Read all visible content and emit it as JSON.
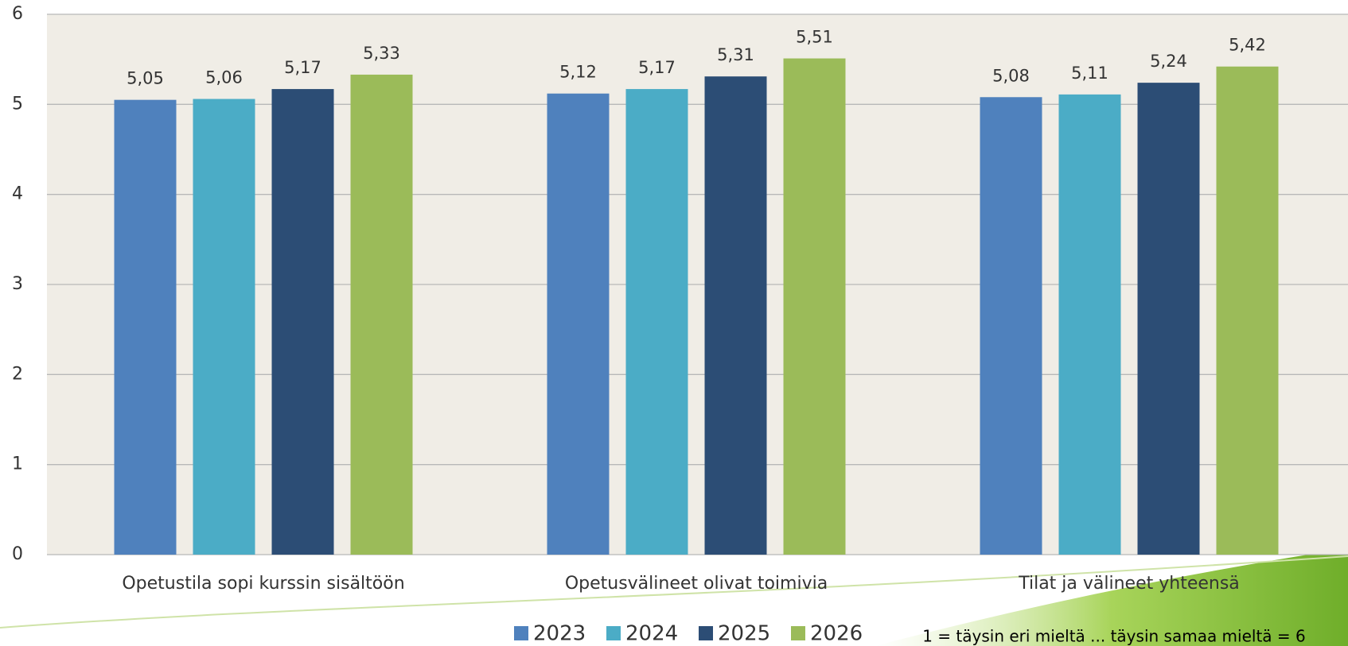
{
  "chart_data": {
    "type": "bar",
    "categories": [
      "Opetustila sopi kurssin sisältöön",
      "Opetusvälineet olivat toimivia",
      "Tilat ja välineet yhteensä"
    ],
    "series": [
      {
        "name": "2023",
        "color": "#4f81bd",
        "values": [
          5.05,
          5.12,
          5.08
        ],
        "value_labels": [
          "5,05",
          "5,12",
          "5,08"
        ]
      },
      {
        "name": "2024",
        "color": "#4bacc6",
        "values": [
          5.06,
          5.17,
          5.11
        ],
        "value_labels": [
          "5,06",
          "5,17",
          "5,11"
        ]
      },
      {
        "name": "2025",
        "color": "#2c4d75",
        "values": [
          5.17,
          5.31,
          5.24
        ],
        "value_labels": [
          "5,17",
          "5,31",
          "5,24"
        ]
      },
      {
        "name": "2026",
        "color": "#9bbb59",
        "values": [
          5.33,
          5.51,
          5.42
        ],
        "value_labels": [
          "5,33",
          "5,51",
          "5,42"
        ]
      }
    ],
    "ylim": [
      0,
      6
    ],
    "yticks": [
      0,
      1,
      2,
      3,
      4,
      5,
      6
    ],
    "grid": true,
    "legend": "bottom",
    "note": "1 = täysin eri mieltä ... täysin samaa mieltä = 6"
  }
}
